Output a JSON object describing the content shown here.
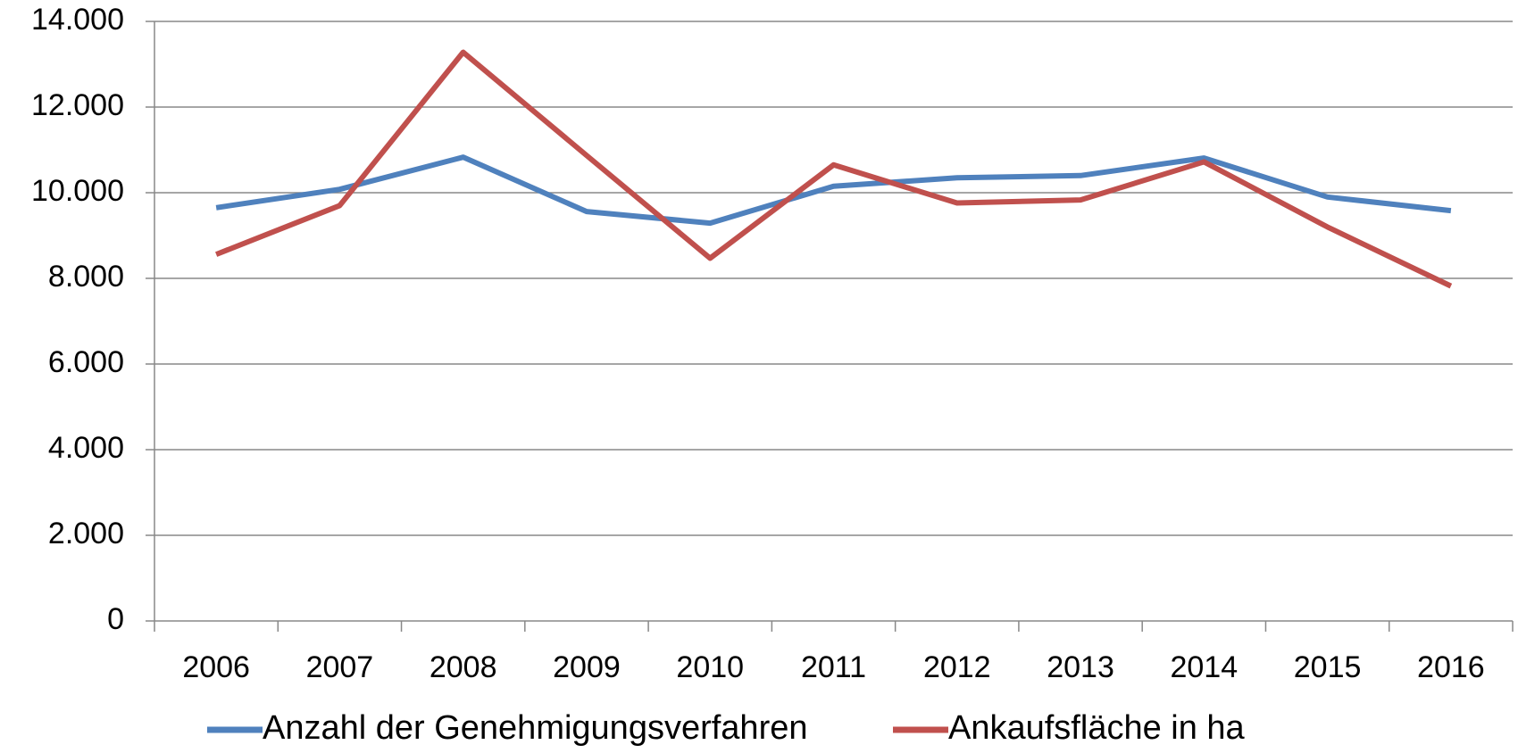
{
  "chart_data": {
    "type": "line",
    "categories": [
      "2006",
      "2007",
      "2008",
      "2009",
      "2010",
      "2011",
      "2012",
      "2013",
      "2014",
      "2015",
      "2016"
    ],
    "series": [
      {
        "name": "Anzahl der Genehmigungsverfahren",
        "color": "#4f81bd",
        "values": [
          9650,
          10080,
          10830,
          9560,
          9290,
          10150,
          10350,
          10400,
          10810,
          9900,
          9580
        ]
      },
      {
        "name": "Ankaufsfläche in ha",
        "color": "#c0504d",
        "values": [
          8560,
          9700,
          13280,
          10870,
          8470,
          10650,
          9760,
          9830,
          10720,
          9200,
          7820
        ]
      }
    ],
    "ylim": [
      0,
      14000
    ],
    "yticks": [
      0,
      {
        "value": 2000,
        "label": "2.000"
      },
      {
        "value": 4000,
        "label": "4.000"
      },
      {
        "value": 6000,
        "label": "6.000"
      },
      {
        "value": 8000,
        "label": "8.000"
      },
      {
        "value": 10000,
        "label": "10.000"
      },
      {
        "value": 12000,
        "label": "12.000"
      },
      {
        "value": 14000,
        "label": "14.000"
      }
    ],
    "grid": true,
    "legend": "bottom"
  }
}
